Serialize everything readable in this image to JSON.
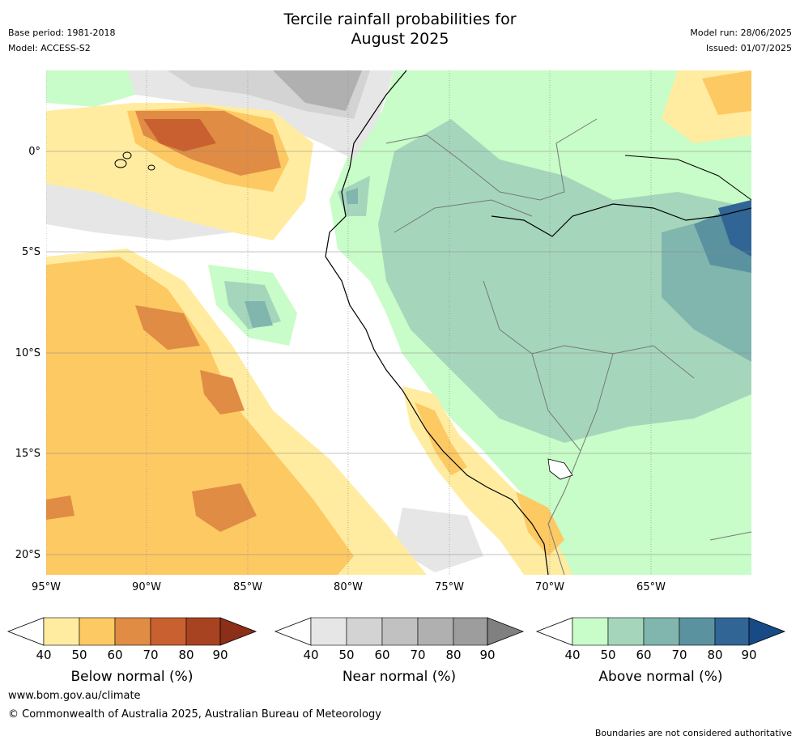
{
  "title": {
    "line1": "Tercile rainfall probabilities for",
    "line2": "August 2025"
  },
  "meta_left": {
    "base_period": "Base period: 1981-2018",
    "model": "Model: ACCESS-S2"
  },
  "meta_right": {
    "model_run": "Model run: 28/06/2025",
    "issued": "Issued: 01/07/2025"
  },
  "map": {
    "lat_labels": [
      "0°",
      "5°S",
      "10°S",
      "15°S",
      "20°S"
    ],
    "lon_labels": [
      "95°W",
      "90°W",
      "85°W",
      "80°W",
      "75°W",
      "70°W",
      "65°W"
    ]
  },
  "colorbars": [
    {
      "label": "Below normal (%)",
      "ticks": [
        "40",
        "50",
        "60",
        "70",
        "80",
        "90"
      ],
      "colors": [
        "#ffeca0",
        "#fdc963",
        "#e08c45",
        "#c9602f",
        "#a84322",
        "#8c2e18"
      ]
    },
    {
      "label": "Near normal (%)",
      "ticks": [
        "40",
        "50",
        "60",
        "70",
        "80",
        "90"
      ],
      "colors": [
        "#e6e6e6",
        "#d3d3d3",
        "#c1c1c1",
        "#b0b0b0",
        "#9d9d9d",
        "#808080"
      ]
    },
    {
      "label": "Above normal (%)",
      "ticks": [
        "40",
        "50",
        "60",
        "70",
        "80",
        "90"
      ],
      "colors": [
        "#c8fcc8",
        "#a5d6bc",
        "#80b6ae",
        "#5b92a0",
        "#316596",
        "#184a86"
      ]
    }
  ],
  "footer": {
    "url": "www.bom.gov.au/climate",
    "copyright": "© Commonwealth of Australia 2025, Australian Bureau of Meteorology",
    "note": "Boundaries are not considered authoritative"
  }
}
